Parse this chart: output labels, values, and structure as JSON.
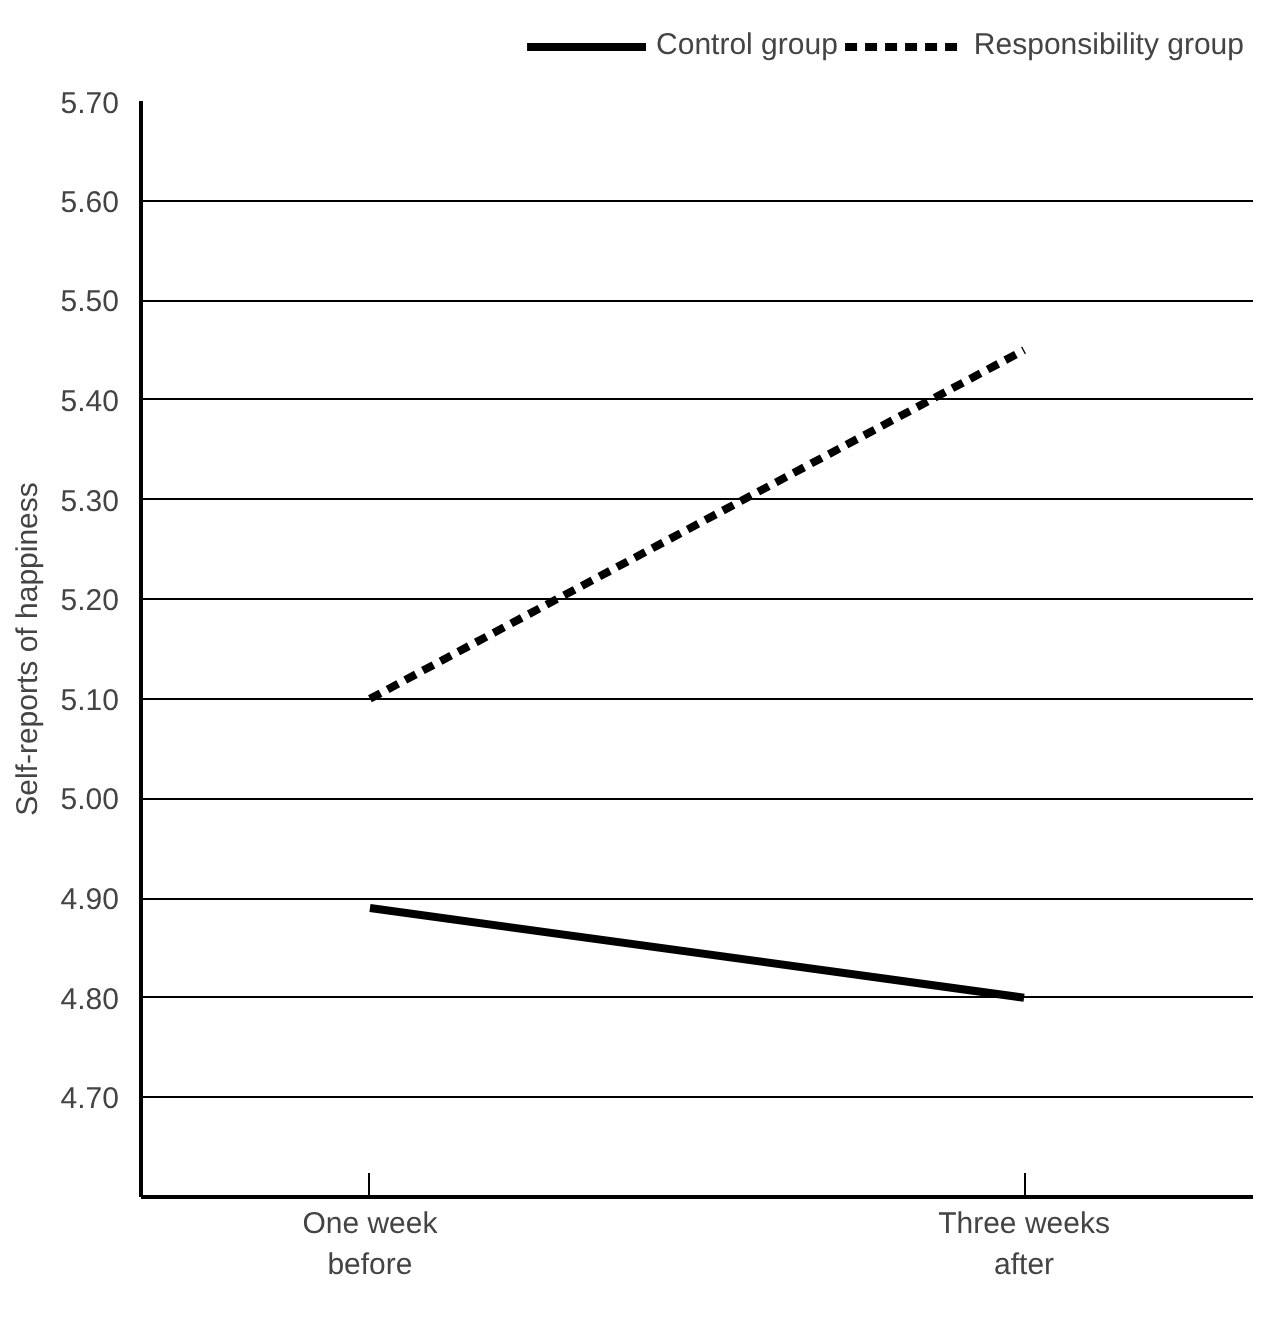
{
  "chart_data": {
    "type": "line",
    "ylabel": "Self-reports of happiness",
    "categories": [
      "One week\nbefore",
      "Three weeks\nafter"
    ],
    "series": [
      {
        "name": "Control group",
        "color": "#000000",
        "values": [
          4.89,
          4.8
        ],
        "line_style": "solid"
      },
      {
        "name": "Responsibility group",
        "color": "#000000",
        "values": [
          5.1,
          5.45
        ],
        "line_style": "dashed"
      }
    ],
    "ylim": [
      4.6,
      5.7
    ],
    "yticks": [
      {
        "value": 4.7,
        "label": "4.70"
      },
      {
        "value": 4.8,
        "label": "4.80"
      },
      {
        "value": 4.9,
        "label": "4.90"
      },
      {
        "value": 5.0,
        "label": "5.00"
      },
      {
        "value": 5.1,
        "label": "5.10"
      },
      {
        "value": 5.2,
        "label": "5.20"
      },
      {
        "value": 5.3,
        "label": "5.30"
      },
      {
        "value": 5.4,
        "label": "5.40"
      },
      {
        "value": 5.5,
        "label": "5.50"
      },
      {
        "value": 5.6,
        "label": "5.60"
      },
      {
        "value": 5.7,
        "label": "5.70"
      }
    ],
    "grid": "y",
    "legend": "top right",
    "marker": "none"
  }
}
